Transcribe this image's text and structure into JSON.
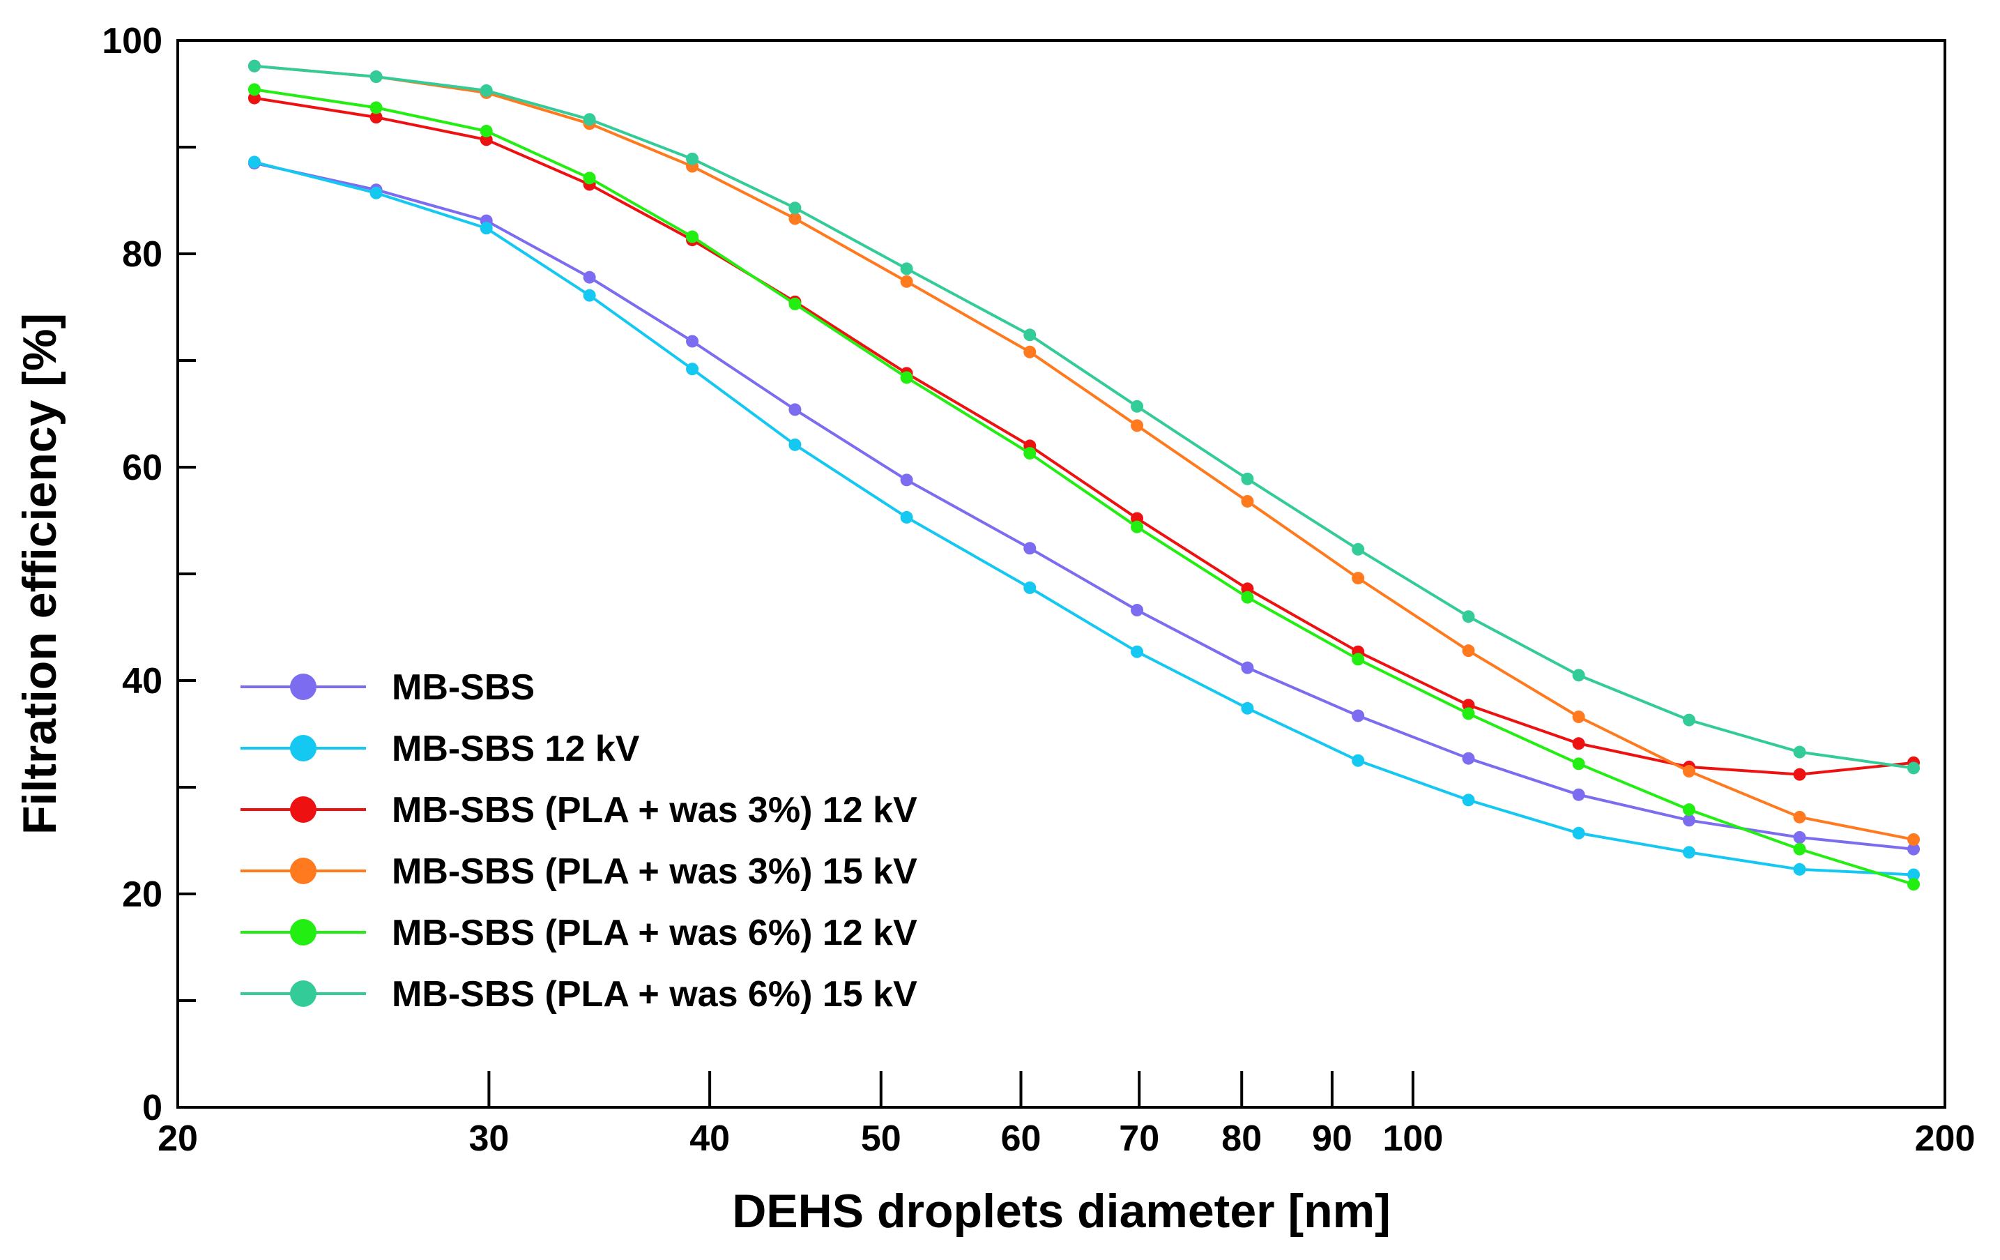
{
  "chart_data": {
    "type": "line",
    "title": "",
    "xlabel": "DEHS droplets diameter [nm]",
    "ylabel": "Filtration efficiency [%]",
    "xscale": "log",
    "xlim": [
      20,
      200
    ],
    "ylim": [
      0,
      100
    ],
    "xticks": [
      20,
      30,
      40,
      50,
      60,
      70,
      80,
      90,
      100,
      200
    ],
    "xtick_labels": [
      "20",
      "30",
      "40",
      "50",
      "60",
      "70",
      "80",
      "90",
      "100",
      "200"
    ],
    "yticks": [
      0,
      20,
      40,
      60,
      80,
      100
    ],
    "ytick_labels": [
      "0",
      "20",
      "40",
      "60",
      "80",
      "100"
    ],
    "grid": false,
    "legend_position": "lower-left",
    "x": [
      22.1,
      25.9,
      29.9,
      34.2,
      39.1,
      44.7,
      51.7,
      60.7,
      69.8,
      80.6,
      93.1,
      107.5,
      124.1,
      143.3,
      165.5,
      192
    ],
    "series": [
      {
        "name": "MB-SBS",
        "color": "#7B6CF0",
        "values": [
          88.5,
          86.0,
          83.1,
          77.8,
          71.8,
          65.4,
          58.8,
          52.4,
          46.6,
          41.2,
          36.7,
          32.7,
          29.3,
          26.9,
          25.3,
          24.2
        ]
      },
      {
        "name": "MB-SBS 12 kV",
        "color": "#15C8F2",
        "values": [
          88.6,
          85.7,
          82.4,
          76.1,
          69.2,
          62.1,
          55.3,
          48.7,
          42.7,
          37.4,
          32.5,
          28.8,
          25.7,
          23.9,
          22.3,
          21.8
        ]
      },
      {
        "name": "MB-SBS (PLA + was 3%)  12 kV",
        "color": "#EE1111",
        "values": [
          94.6,
          92.8,
          90.7,
          86.5,
          81.3,
          75.5,
          68.8,
          62.0,
          55.2,
          48.6,
          42.7,
          37.7,
          34.1,
          31.9,
          31.2,
          32.3
        ]
      },
      {
        "name": "MB-SBS (PLA + was 3%)  15 kV",
        "color": "#FF7A1F",
        "values": [
          97.6,
          96.6,
          95.1,
          92.2,
          88.2,
          83.3,
          77.4,
          70.8,
          63.9,
          56.8,
          49.6,
          42.8,
          36.6,
          31.5,
          27.2,
          25.1
        ]
      },
      {
        "name": "MB-SBS (PLA + was 6%)  12 kV",
        "color": "#22EE11",
        "values": [
          95.4,
          93.7,
          91.5,
          87.1,
          81.6,
          75.3,
          68.4,
          61.3,
          54.4,
          47.8,
          42.0,
          36.9,
          32.2,
          27.9,
          24.2,
          20.9
        ]
      },
      {
        "name": "MB-SBS (PLA + was 6%)  15 kV",
        "color": "#33CC99",
        "values": [
          97.6,
          96.6,
          95.3,
          92.6,
          88.9,
          84.3,
          78.6,
          72.4,
          65.7,
          58.9,
          52.3,
          46.0,
          40.5,
          36.3,
          33.3,
          31.8
        ]
      }
    ]
  }
}
